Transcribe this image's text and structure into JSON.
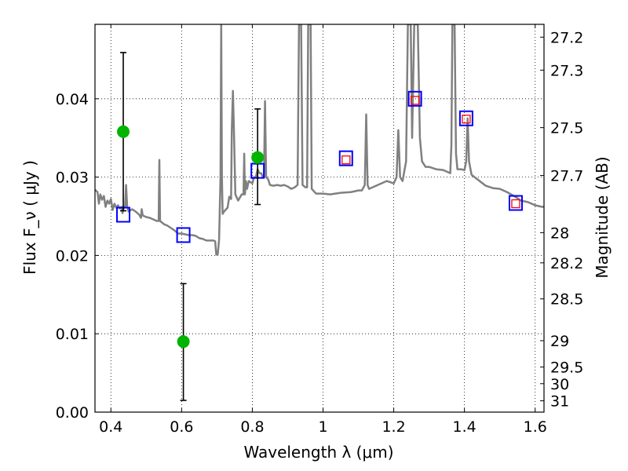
{
  "chart_data": {
    "type": "scatter",
    "xlabel": "Wavelength  λ (μm)",
    "ylabel": "Flux  F_ν  ( μJy )",
    "y2label": "Magnitude (AB)",
    "xlim": [
      0.355,
      1.625
    ],
    "ylim": [
      0.0,
      0.0495
    ],
    "grid": true,
    "x_ticks": [
      0.4,
      0.6,
      0.8,
      1.0,
      1.2,
      1.4,
      1.6
    ],
    "x_tick_labels": [
      "0.4",
      "0.6",
      "0.8",
      "1",
      "1.2",
      "1.4",
      "1.6"
    ],
    "y_ticks": [
      0.0,
      0.01,
      0.02,
      0.03,
      0.04
    ],
    "y_tick_labels": [
      "0.00",
      "0.01",
      "0.02",
      "0.03",
      "0.04"
    ],
    "mag_ticks": [
      27.2,
      27.3,
      27.5,
      27.7,
      28,
      28.2,
      28.5,
      29,
      29.5,
      30,
      31
    ],
    "mag_tick_labels": [
      "27.2",
      "27.3",
      "27.5",
      "27.7",
      "28",
      "28.2",
      "28.5",
      "29",
      "29.5",
      "30",
      "31"
    ],
    "series": [
      {
        "kind": "template-spectrum",
        "color": "#808080",
        "points": [
          [
            0.355,
            0.0284
          ],
          [
            0.362,
            0.0281
          ],
          [
            0.366,
            0.0266
          ],
          [
            0.37,
            0.0278
          ],
          [
            0.375,
            0.0271
          ],
          [
            0.38,
            0.0276
          ],
          [
            0.385,
            0.0262
          ],
          [
            0.39,
            0.027
          ],
          [
            0.395,
            0.0266
          ],
          [
            0.4,
            0.0272
          ],
          [
            0.405,
            0.0258
          ],
          [
            0.41,
            0.0266
          ],
          [
            0.415,
            0.0261
          ],
          [
            0.42,
            0.0264
          ],
          [
            0.425,
            0.026
          ],
          [
            0.43,
            0.0262
          ],
          [
            0.433,
            0.0254
          ],
          [
            0.437,
            0.0262
          ],
          [
            0.44,
            0.0262
          ],
          [
            0.443,
            0.029
          ],
          [
            0.446,
            0.0262
          ],
          [
            0.45,
            0.0256
          ],
          [
            0.46,
            0.0259
          ],
          [
            0.47,
            0.0256
          ],
          [
            0.48,
            0.0252
          ],
          [
            0.485,
            0.0248
          ],
          [
            0.487,
            0.0259
          ],
          [
            0.49,
            0.0251
          ],
          [
            0.5,
            0.0249
          ],
          [
            0.51,
            0.0248
          ],
          [
            0.52,
            0.0246
          ],
          [
            0.53,
            0.0244
          ],
          [
            0.535,
            0.0244
          ],
          [
            0.537,
            0.0322
          ],
          [
            0.539,
            0.0244
          ],
          [
            0.55,
            0.024
          ],
          [
            0.56,
            0.0238
          ],
          [
            0.57,
            0.0235
          ],
          [
            0.58,
            0.0232
          ],
          [
            0.59,
            0.0228
          ],
          [
            0.6,
            0.0228
          ],
          [
            0.61,
            0.0227
          ],
          [
            0.62,
            0.0226
          ],
          [
            0.63,
            0.0226
          ],
          [
            0.64,
            0.0225
          ],
          [
            0.65,
            0.0222
          ],
          [
            0.66,
            0.0221
          ],
          [
            0.67,
            0.0219
          ],
          [
            0.68,
            0.0219
          ],
          [
            0.69,
            0.0219
          ],
          [
            0.695,
            0.0218
          ],
          [
            0.698,
            0.0201
          ],
          [
            0.702,
            0.0201
          ],
          [
            0.706,
            0.022
          ],
          [
            0.71,
            0.03
          ],
          [
            0.712,
            0.0495
          ],
          [
            0.714,
            0.03
          ],
          [
            0.716,
            0.0253
          ],
          [
            0.72,
            0.0256
          ],
          [
            0.73,
            0.0261
          ],
          [
            0.735,
            0.0275
          ],
          [
            0.74,
            0.0272
          ],
          [
            0.742,
            0.036
          ],
          [
            0.745,
            0.041
          ],
          [
            0.748,
            0.036
          ],
          [
            0.752,
            0.0278
          ],
          [
            0.76,
            0.027
          ],
          [
            0.77,
            0.0278
          ],
          [
            0.775,
            0.0278
          ],
          [
            0.777,
            0.033
          ],
          [
            0.779,
            0.0278
          ],
          [
            0.782,
            0.0295
          ],
          [
            0.785,
            0.0285
          ],
          [
            0.79,
            0.0295
          ],
          [
            0.8,
            0.0292
          ],
          [
            0.805,
            0.03
          ],
          [
            0.81,
            0.03
          ],
          [
            0.815,
            0.031
          ],
          [
            0.82,
            0.0305
          ],
          [
            0.825,
            0.0305
          ],
          [
            0.83,
            0.03
          ],
          [
            0.833,
            0.03
          ],
          [
            0.836,
            0.0397
          ],
          [
            0.839,
            0.03
          ],
          [
            0.845,
            0.0297
          ],
          [
            0.85,
            0.029
          ],
          [
            0.86,
            0.0289
          ],
          [
            0.87,
            0.029
          ],
          [
            0.88,
            0.0289
          ],
          [
            0.89,
            0.029
          ],
          [
            0.9,
            0.0288
          ],
          [
            0.91,
            0.0285
          ],
          [
            0.92,
            0.0287
          ],
          [
            0.928,
            0.029
          ],
          [
            0.932,
            0.0495
          ],
          [
            0.938,
            0.0495
          ],
          [
            0.942,
            0.029
          ],
          [
            0.95,
            0.0287
          ],
          [
            0.955,
            0.0287
          ],
          [
            0.958,
            0.0495
          ],
          [
            0.965,
            0.0495
          ],
          [
            0.968,
            0.0285
          ],
          [
            0.98,
            0.0279
          ],
          [
            1.0,
            0.0279
          ],
          [
            1.02,
            0.0278
          ],
          [
            1.05,
            0.028
          ],
          [
            1.08,
            0.0281
          ],
          [
            1.1,
            0.0283
          ],
          [
            1.11,
            0.0283
          ],
          [
            1.118,
            0.029
          ],
          [
            1.122,
            0.038
          ],
          [
            1.126,
            0.029
          ],
          [
            1.13,
            0.0285
          ],
          [
            1.15,
            0.0289
          ],
          [
            1.18,
            0.0295
          ],
          [
            1.2,
            0.0292
          ],
          [
            1.208,
            0.03
          ],
          [
            1.213,
            0.036
          ],
          [
            1.218,
            0.03
          ],
          [
            1.225,
            0.0295
          ],
          [
            1.235,
            0.032
          ],
          [
            1.24,
            0.0495
          ],
          [
            1.248,
            0.0495
          ],
          [
            1.252,
            0.035
          ],
          [
            1.258,
            0.0495
          ],
          [
            1.268,
            0.0495
          ],
          [
            1.274,
            0.035
          ],
          [
            1.28,
            0.032
          ],
          [
            1.29,
            0.0313
          ],
          [
            1.3,
            0.0313
          ],
          [
            1.32,
            0.031
          ],
          [
            1.34,
            0.0309
          ],
          [
            1.36,
            0.0305
          ],
          [
            1.363,
            0.034
          ],
          [
            1.366,
            0.0495
          ],
          [
            1.372,
            0.0495
          ],
          [
            1.376,
            0.033
          ],
          [
            1.38,
            0.031
          ],
          [
            1.39,
            0.031
          ],
          [
            1.4,
            0.0309
          ],
          [
            1.405,
            0.032
          ],
          [
            1.409,
            0.0375
          ],
          [
            1.413,
            0.032
          ],
          [
            1.42,
            0.0303
          ],
          [
            1.44,
            0.0296
          ],
          [
            1.46,
            0.0289
          ],
          [
            1.48,
            0.0286
          ],
          [
            1.5,
            0.0285
          ],
          [
            1.52,
            0.0281
          ],
          [
            1.54,
            0.0276
          ],
          [
            1.55,
            0.0273
          ],
          [
            1.56,
            0.027
          ],
          [
            1.58,
            0.0268
          ],
          [
            1.6,
            0.0264
          ],
          [
            1.62,
            0.0262
          ],
          [
            1.625,
            0.0262
          ]
        ]
      },
      {
        "kind": "observed",
        "color": "#00b400",
        "marker": "circle",
        "points": [
          {
            "x": 0.435,
            "y": 0.0358,
            "ylo": 0.0257,
            "yhi": 0.0459
          },
          {
            "x": 0.605,
            "y": 0.009,
            "ylo": 0.0015,
            "yhi": 0.0164
          },
          {
            "x": 0.815,
            "y": 0.0325,
            "ylo": 0.0265,
            "yhi": 0.0387
          }
        ]
      },
      {
        "kind": "model-photometry",
        "color": "#0000ff",
        "marker": "square",
        "points": [
          {
            "x": 0.435,
            "y": 0.0252
          },
          {
            "x": 0.605,
            "y": 0.0226
          },
          {
            "x": 0.815,
            "y": 0.0308
          },
          {
            "x": 1.065,
            "y": 0.0324
          },
          {
            "x": 1.26,
            "y": 0.04
          },
          {
            "x": 1.405,
            "y": 0.0375
          },
          {
            "x": 1.545,
            "y": 0.0267
          }
        ]
      },
      {
        "kind": "observed-small",
        "color": "#ff0000",
        "marker": "square",
        "points": [
          {
            "x": 1.065,
            "y": 0.0322
          },
          {
            "x": 1.26,
            "y": 0.0398
          },
          {
            "x": 1.405,
            "y": 0.0374
          },
          {
            "x": 1.545,
            "y": 0.0266
          }
        ]
      }
    ]
  }
}
